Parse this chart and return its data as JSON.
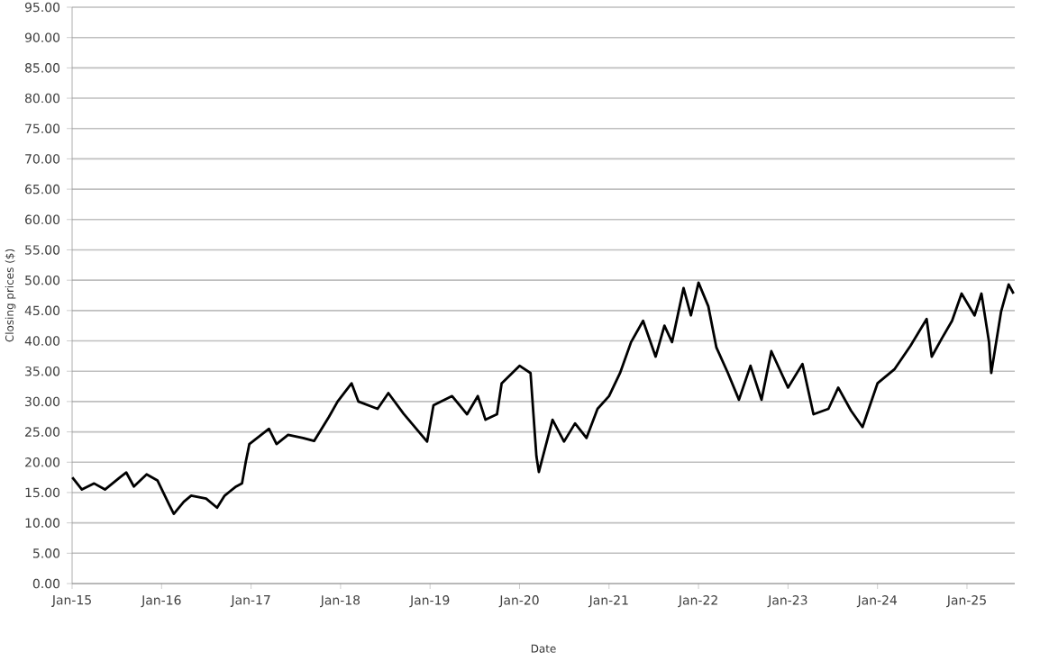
{
  "chart_data": {
    "type": "line",
    "xlabel": "Date",
    "ylabel": "Closing prices ($)",
    "grid": "y",
    "marker": "none",
    "line_style": "solid",
    "xlim": [
      "2015-01-01",
      "2025-07-15"
    ],
    "xticks": [
      {
        "value": "2015-01-01",
        "label": "Jan-15"
      },
      {
        "value": "2016-01-01",
        "label": "Jan-16"
      },
      {
        "value": "2017-01-01",
        "label": "Jan-17"
      },
      {
        "value": "2018-01-01",
        "label": "Jan-18"
      },
      {
        "value": "2019-01-01",
        "label": "Jan-19"
      },
      {
        "value": "2020-01-01",
        "label": "Jan-20"
      },
      {
        "value": "2021-01-01",
        "label": "Jan-21"
      },
      {
        "value": "2022-01-01",
        "label": "Jan-22"
      },
      {
        "value": "2023-01-01",
        "label": "Jan-23"
      },
      {
        "value": "2024-01-01",
        "label": "Jan-24"
      },
      {
        "value": "2025-01-01",
        "label": "Jan-25"
      }
    ],
    "ylim": [
      0,
      95
    ],
    "yticks": [
      {
        "value": 0,
        "label": "0.00"
      },
      {
        "value": 5,
        "label": "5.00"
      },
      {
        "value": 10,
        "label": "10.00"
      },
      {
        "value": 15,
        "label": "15.00"
      },
      {
        "value": 20,
        "label": "20.00"
      },
      {
        "value": 25,
        "label": "25.00"
      },
      {
        "value": 30,
        "label": "30.00"
      },
      {
        "value": 35,
        "label": "35.00"
      },
      {
        "value": 40,
        "label": "40.00"
      },
      {
        "value": 45,
        "label": "45.00"
      },
      {
        "value": 50,
        "label": "50.00"
      },
      {
        "value": 55,
        "label": "55.00"
      },
      {
        "value": 60,
        "label": "60.00"
      },
      {
        "value": 65,
        "label": "65.00"
      },
      {
        "value": 70,
        "label": "70.00"
      },
      {
        "value": 75,
        "label": "75.00"
      },
      {
        "value": 80,
        "label": "80.00"
      },
      {
        "value": 85,
        "label": "85.00"
      },
      {
        "value": 90,
        "label": "90.00"
      },
      {
        "value": 95,
        "label": "95.00"
      }
    ],
    "x": [
      "2015-01-02",
      "2015-02-10",
      "2015-04-01",
      "2015-05-15",
      "2015-07-15",
      "2015-08-10",
      "2015-09-10",
      "2015-11-01",
      "2015-12-15",
      "2016-02-01",
      "2016-02-20",
      "2016-04-01",
      "2016-05-01",
      "2016-07-01",
      "2016-08-15",
      "2016-09-15",
      "2016-11-01",
      "2016-11-25",
      "2016-12-10",
      "2016-12-25",
      "2017-03-15",
      "2017-04-15",
      "2017-06-01",
      "2017-08-01",
      "2017-09-15",
      "2017-11-15",
      "2017-12-20",
      "2018-02-15",
      "2018-03-15",
      "2018-06-01",
      "2018-07-15",
      "2018-09-15",
      "2018-12-20",
      "2019-01-15",
      "2019-04-01",
      "2019-06-01",
      "2019-07-15",
      "2019-08-15",
      "2019-10-01",
      "2019-10-20",
      "2020-01-01",
      "2020-02-15",
      "2020-03-10",
      "2020-03-20",
      "2020-05-15",
      "2020-07-01",
      "2020-08-15",
      "2020-10-01",
      "2020-11-15",
      "2021-01-01",
      "2021-02-15",
      "2021-04-01",
      "2021-05-20",
      "2021-07-10",
      "2021-08-15",
      "2021-09-15",
      "2021-11-01",
      "2021-12-01",
      "2022-01-01",
      "2022-02-10",
      "2022-03-15",
      "2022-05-01",
      "2022-06-15",
      "2022-08-01",
      "2022-09-15",
      "2022-10-25",
      "2023-01-01",
      "2023-03-01",
      "2023-04-15",
      "2023-06-15",
      "2023-07-25",
      "2023-09-15",
      "2023-11-01",
      "2024-01-01",
      "2024-03-10",
      "2024-05-15",
      "2024-07-20",
      "2024-08-10",
      "2024-09-20",
      "2024-11-01",
      "2024-12-10",
      "2025-02-01",
      "2025-03-01",
      "2025-04-01",
      "2025-04-10",
      "2025-05-20",
      "2025-06-20",
      "2025-07-10"
    ],
    "series": [
      {
        "color": "#000000",
        "values": [
          17.5,
          15.5,
          16.5,
          15.5,
          17.5,
          18.3,
          16,
          18,
          17,
          13,
          11.5,
          13.5,
          14.5,
          14,
          12.5,
          14.5,
          16,
          16.5,
          20,
          23,
          25.5,
          23,
          24.5,
          24,
          23.5,
          27.5,
          30,
          33,
          30,
          28.8,
          31.4,
          28,
          23.4,
          29.4,
          30.9,
          27.9,
          30.9,
          27,
          27.9,
          33,
          35.9,
          34.7,
          21,
          18.4,
          27,
          23.4,
          26.4,
          24,
          28.8,
          30.9,
          34.7,
          39.8,
          43.3,
          37.4,
          42.5,
          39.8,
          48.7,
          44.2,
          49.6,
          45.7,
          38.9,
          34.7,
          30.3,
          35.9,
          30.3,
          38.3,
          32.3,
          36.2,
          27.9,
          28.8,
          32.3,
          28.5,
          25.8,
          33,
          35.3,
          39.2,
          43.6,
          37.4,
          40.4,
          43.3,
          47.8,
          44.2,
          47.8,
          39.8,
          34.7,
          44.8,
          49.3,
          47.8
        ]
      }
    ]
  }
}
